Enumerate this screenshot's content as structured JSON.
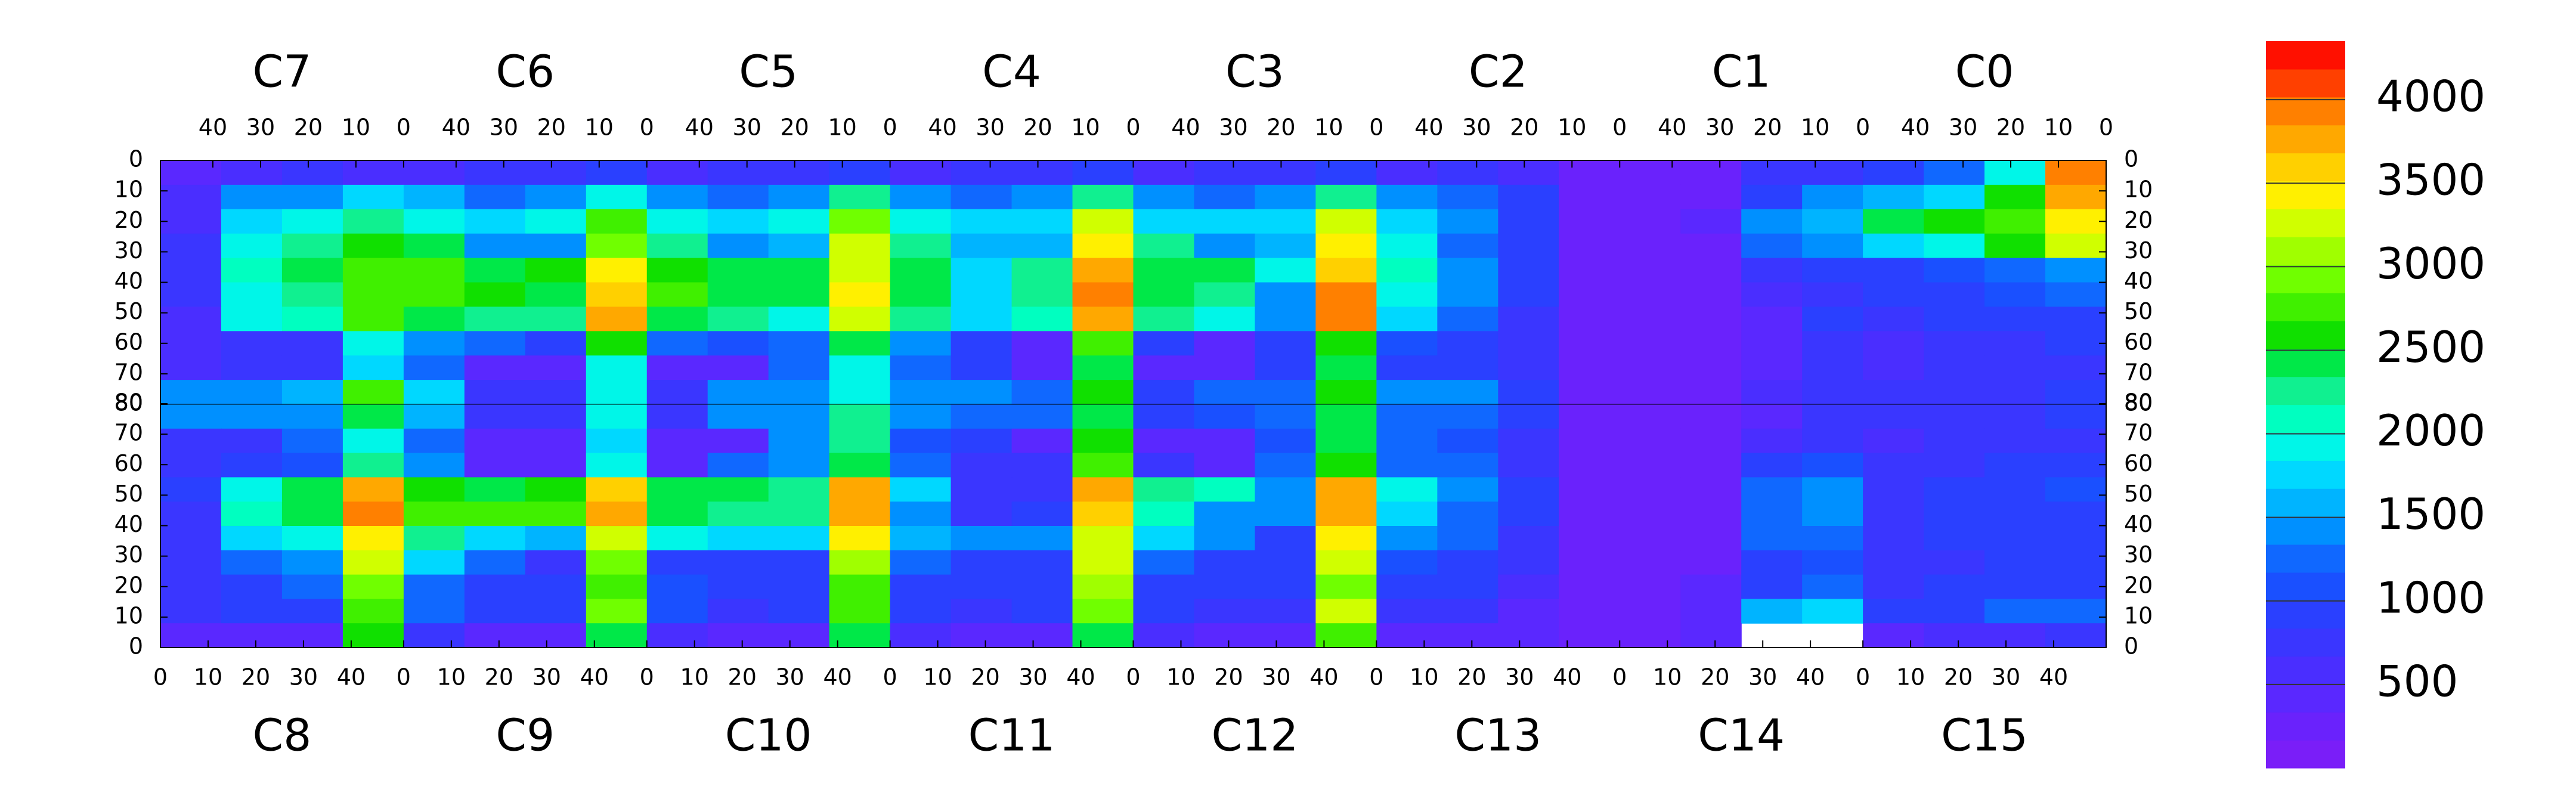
{
  "chart_data": {
    "type": "heatmap",
    "top_chips": [
      "C7",
      "C6",
      "C5",
      "C4",
      "C3",
      "C2",
      "C1",
      "C0"
    ],
    "bottom_chips": [
      "C8",
      "C9",
      "C10",
      "C11",
      "C12",
      "C13",
      "C14",
      "C15"
    ],
    "xlim": [
      0,
      51
    ],
    "xticks": [
      0,
      10,
      20,
      30,
      40
    ],
    "ylim": [
      0,
      80
    ],
    "yticks": [
      0,
      10,
      20,
      30,
      40,
      50,
      60,
      70,
      80
    ],
    "zlim": [
      0,
      4350
    ],
    "zticks": [
      500,
      1000,
      1500,
      2000,
      2500,
      3000,
      3500,
      4000
    ],
    "colorscale": [
      "#7a1ef8",
      "#6a22fc",
      "#5a28ff",
      "#4a2eff",
      "#3a36ff",
      "#2a40ff",
      "#1a50ff",
      "#1068ff",
      "#0090ff",
      "#00b4ff",
      "#00d8ff",
      "#00f6e8",
      "#00ffc0",
      "#10f090",
      "#00e848",
      "#10e000",
      "#40f000",
      "#70ff00",
      "#a0ff00",
      "#d0ff00",
      "#fff000",
      "#ffd000",
      "#ffa800",
      "#ff8000",
      "#ff4000",
      "#ff1000"
    ],
    "z_top": [
      [
        500,
        600,
        700,
        600,
        600,
        700,
        700,
        900,
        600,
        700,
        700,
        900,
        600,
        700,
        700,
        1000,
        600,
        700,
        700,
        1000,
        600,
        700,
        600,
        300,
        200,
        300,
        700,
        800,
        900,
        1200,
        2000,
        4000
      ],
      [
        600,
        1400,
        1500,
        1800,
        1600,
        1200,
        1500,
        2000,
        1500,
        1200,
        1500,
        2200,
        1500,
        1300,
        1500,
        2200,
        1500,
        1300,
        1400,
        2200,
        1400,
        1300,
        900,
        300,
        200,
        300,
        1000,
        1500,
        1600,
        1800,
        2600,
        3800
      ],
      [
        600,
        1800,
        2000,
        2200,
        2000,
        1800,
        1900,
        2800,
        1900,
        1800,
        1900,
        3000,
        1900,
        1700,
        1800,
        3200,
        1800,
        1700,
        1700,
        3200,
        1700,
        1500,
        1000,
        200,
        200,
        400,
        1400,
        1600,
        2400,
        2600,
        2800,
        3500
      ],
      [
        700,
        2000,
        2200,
        2600,
        2400,
        1400,
        1500,
        3000,
        2300,
        1500,
        1600,
        3200,
        2200,
        1600,
        1600,
        3500,
        2300,
        1500,
        1600,
        3400,
        2000,
        1300,
        1000,
        200,
        200,
        300,
        1200,
        1500,
        1800,
        2000,
        2600,
        3300
      ],
      [
        700,
        2100,
        2400,
        2800,
        2700,
        2500,
        2600,
        3400,
        2600,
        2500,
        2500,
        3300,
        2400,
        1800,
        2200,
        3700,
        2400,
        2400,
        2000,
        3600,
        2100,
        1500,
        900,
        200,
        200,
        300,
        700,
        900,
        1000,
        1100,
        1300,
        1500
      ],
      [
        700,
        2000,
        2300,
        2700,
        2700,
        2600,
        2500,
        3600,
        2700,
        2500,
        2400,
        3400,
        2400,
        1800,
        2300,
        3900,
        2500,
        2200,
        1500,
        3900,
        2000,
        1400,
        900,
        200,
        200,
        300,
        600,
        800,
        900,
        1000,
        1100,
        1200
      ],
      [
        600,
        1900,
        2100,
        2800,
        2500,
        2300,
        2200,
        3700,
        2500,
        2200,
        2000,
        3200,
        2200,
        1800,
        2100,
        3800,
        2300,
        2000,
        1400,
        4000,
        1800,
        1300,
        800,
        200,
        200,
        300,
        500,
        900,
        700,
        900,
        900,
        1000
      ],
      [
        600,
        700,
        800,
        2000,
        1500,
        1200,
        1000,
        2600,
        1300,
        1100,
        1200,
        2400,
        1500,
        900,
        500,
        2800,
        1000,
        500,
        1000,
        2600,
        1100,
        1000,
        700,
        200,
        200,
        300,
        500,
        800,
        600,
        800,
        800,
        900
      ],
      [
        600,
        700,
        800,
        1800,
        1300,
        500,
        500,
        2000,
        500,
        500,
        1300,
        2000,
        1200,
        1000,
        500,
        2500,
        500,
        500,
        1000,
        2400,
        1000,
        900,
        700,
        200,
        200,
        300,
        500,
        700,
        600,
        700,
        700,
        800
      ],
      [
        1500,
        1500,
        1600,
        2800,
        1800,
        700,
        700,
        2000,
        700,
        1400,
        1500,
        2000,
        1500,
        1400,
        1200,
        2600,
        1000,
        1200,
        1300,
        2600,
        1400,
        1400,
        1000,
        300,
        200,
        300,
        600,
        800,
        700,
        800,
        800,
        900
      ]
    ],
    "z_bottom": [
      [
        1500,
        1500,
        1500,
        2500,
        1600,
        700,
        700,
        1900,
        700,
        1400,
        1400,
        2200,
        1400,
        1300,
        1200,
        2500,
        1000,
        1100,
        1200,
        2500,
        1300,
        1300,
        900,
        200,
        200,
        300,
        500,
        700,
        700,
        800,
        800,
        900
      ],
      [
        700,
        700,
        1300,
        2000,
        1200,
        400,
        400,
        1800,
        400,
        500,
        1400,
        2200,
        1100,
        1000,
        400,
        2600,
        400,
        400,
        1100,
        2400,
        1200,
        1100,
        800,
        200,
        200,
        300,
        600,
        700,
        600,
        700,
        800,
        800
      ],
      [
        800,
        900,
        1100,
        2200,
        1500,
        500,
        500,
        2000,
        500,
        1300,
        1400,
        2400,
        1200,
        800,
        700,
        2800,
        800,
        500,
        1200,
        2600,
        1300,
        1200,
        800,
        200,
        200,
        300,
        900,
        1100,
        700,
        800,
        900,
        1000
      ],
      [
        900,
        2000,
        2400,
        3800,
        2600,
        2500,
        2600,
        3600,
        2500,
        2400,
        2300,
        3700,
        1800,
        700,
        700,
        3700,
        2300,
        2100,
        1500,
        3800,
        2000,
        1400,
        900,
        200,
        200,
        300,
        1200,
        1500,
        800,
        900,
        1000,
        1100
      ],
      [
        800,
        2100,
        2500,
        3900,
        2800,
        2800,
        2700,
        3800,
        2500,
        2300,
        2200,
        3800,
        1500,
        700,
        1000,
        3600,
        2100,
        1500,
        1500,
        3800,
        1700,
        1300,
        900,
        200,
        200,
        300,
        1300,
        1400,
        800,
        900,
        1000,
        1000
      ],
      [
        700,
        1700,
        2000,
        3500,
        2200,
        1800,
        1600,
        3300,
        1900,
        1700,
        1800,
        3400,
        1600,
        1500,
        1500,
        3300,
        1800,
        1500,
        1000,
        3500,
        1500,
        1200,
        800,
        200,
        200,
        300,
        1200,
        1300,
        800,
        900,
        900,
        1000
      ],
      [
        700,
        1300,
        1500,
        3200,
        1700,
        1300,
        800,
        3000,
        1000,
        900,
        1000,
        3100,
        1200,
        1000,
        1000,
        3200,
        1200,
        1000,
        900,
        3300,
        1100,
        1000,
        700,
        200,
        200,
        300,
        1000,
        1100,
        700,
        800,
        900,
        900
      ],
      [
        700,
        1000,
        1200,
        3000,
        1300,
        1000,
        1000,
        2800,
        1100,
        1000,
        1000,
        2800,
        1000,
        1000,
        1000,
        3100,
        1000,
        900,
        900,
        3000,
        900,
        900,
        600,
        200,
        200,
        400,
        1000,
        1200,
        800,
        900,
        900,
        1000
      ],
      [
        700,
        900,
        1000,
        2800,
        1200,
        900,
        900,
        2900,
        1100,
        800,
        900,
        2700,
        1000,
        800,
        900,
        3000,
        900,
        800,
        800,
        3200,
        800,
        700,
        500,
        200,
        300,
        500,
        1600,
        1800,
        900,
        1000,
        1200,
        1300
      ],
      [
        500,
        400,
        400,
        2600,
        700,
        400,
        500,
        2500,
        600,
        500,
        500,
        2400,
        600,
        500,
        500,
        2500,
        600,
        500,
        500,
        2800,
        500,
        500,
        400,
        200,
        300,
        500,
        null,
        null,
        500,
        600,
        600,
        700
      ]
    ]
  }
}
